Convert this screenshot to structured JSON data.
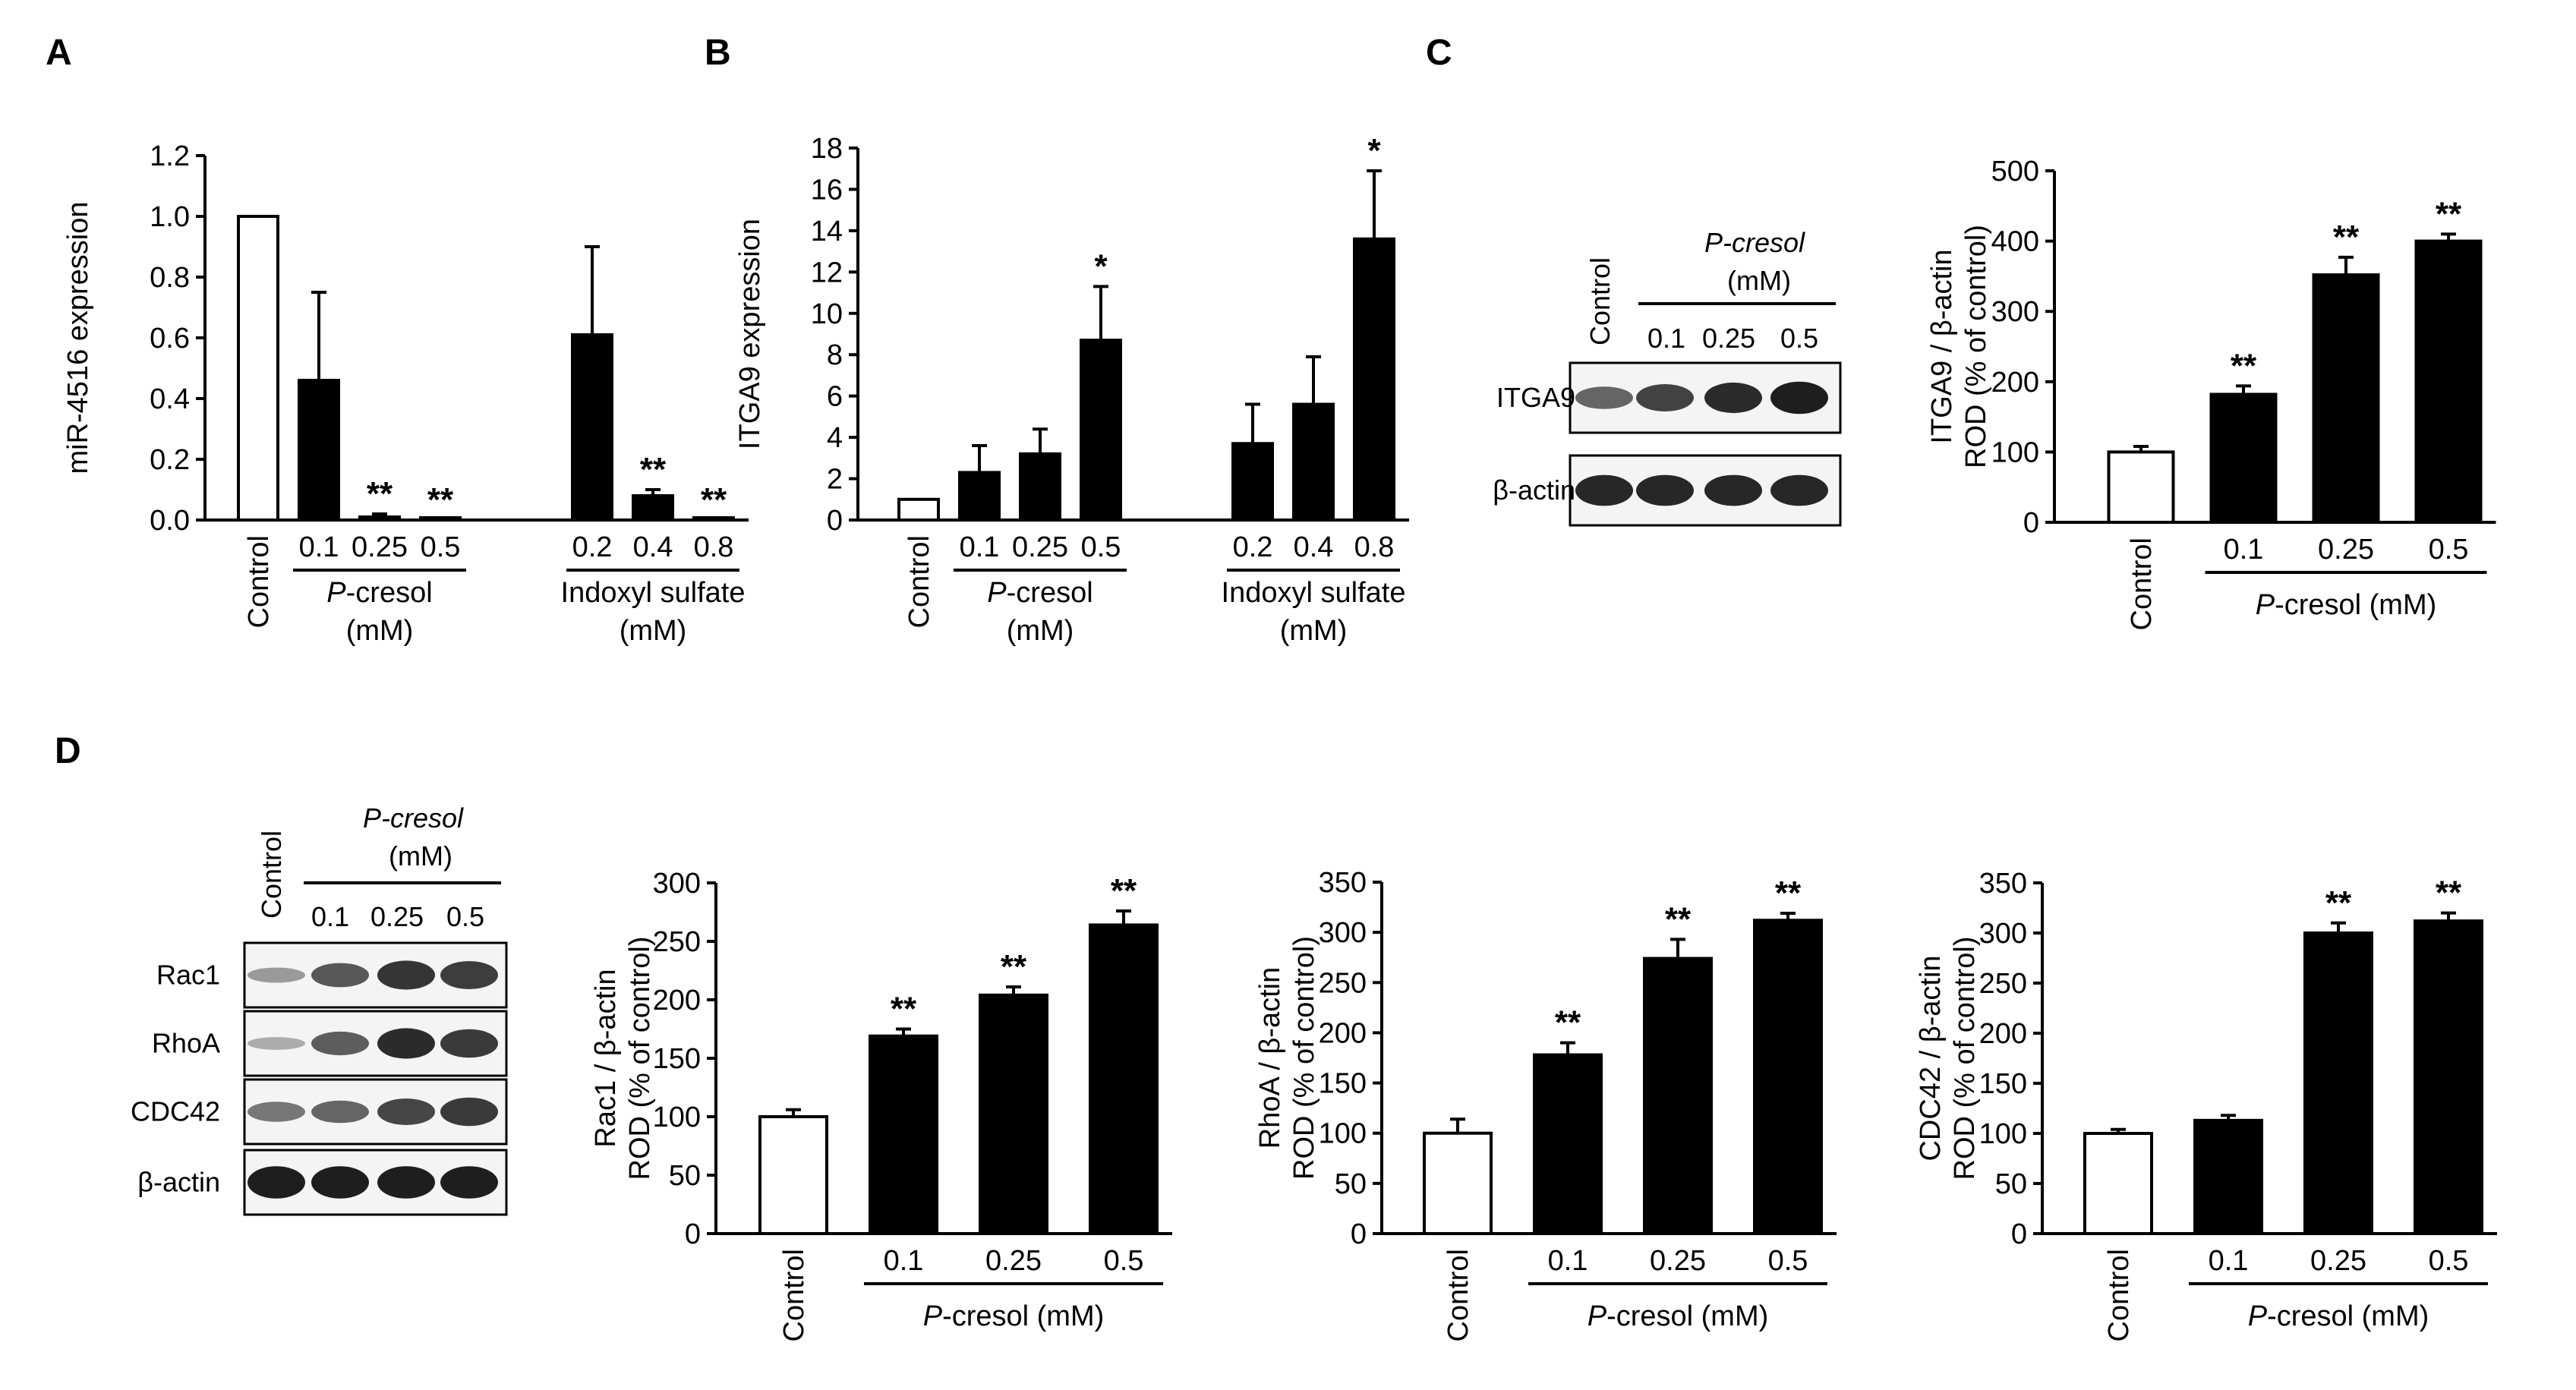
{
  "chart_data": [
    {
      "panel": "A",
      "type": "bar",
      "ylabel": "miR-4516 expression",
      "ylim": [
        0,
        1.2
      ],
      "yticks": [
        "0.0",
        "0.2",
        "0.4",
        "0.6",
        "0.8",
        "1.0",
        "1.2"
      ],
      "categories": [
        "Control",
        "0.1",
        "0.25",
        "0.5",
        "0.2",
        "0.4",
        "0.8"
      ],
      "values": [
        1.0,
        0.46,
        0.01,
        0.0,
        0.61,
        0.08,
        0.0
      ],
      "errors": [
        0,
        0.29,
        0.01,
        0,
        0.29,
        0.02,
        0
      ],
      "significance": [
        "",
        "",
        "**",
        "**",
        "",
        "**",
        "**"
      ],
      "groups": [
        {
          "name": "P-cresol",
          "unit": "(mM)",
          "members": [
            1,
            2,
            3
          ]
        },
        {
          "name": "Indoxyl sulfate",
          "unit": "(mM)",
          "members": [
            4,
            5,
            6
          ]
        }
      ]
    },
    {
      "panel": "B",
      "type": "bar",
      "ylabel": "ITGA9 expression",
      "ylim": [
        0,
        18
      ],
      "yticks": [
        "0",
        "2",
        "4",
        "6",
        "8",
        "10",
        "12",
        "14",
        "16",
        "18"
      ],
      "categories": [
        "Control",
        "0.1",
        "0.25",
        "0.5",
        "0.2",
        "0.4",
        "0.8"
      ],
      "values": [
        1.0,
        2.3,
        3.2,
        8.7,
        3.7,
        5.6,
        13.6
      ],
      "errors": [
        0,
        1.3,
        1.2,
        2.6,
        1.9,
        2.3,
        3.3
      ],
      "significance": [
        "",
        "",
        "",
        "*",
        "",
        "",
        "*"
      ],
      "groups": [
        {
          "name": "P-cresol",
          "unit": "(mM)",
          "members": [
            1,
            2,
            3
          ]
        },
        {
          "name": "Indoxyl sulfate",
          "unit": "(mM)",
          "members": [
            4,
            5,
            6
          ]
        }
      ]
    },
    {
      "panel": "C",
      "type": "bar",
      "ylabel_line1": "ITGA9 / β-actin",
      "ylabel_line2": "ROD (% of control)",
      "ylim": [
        0,
        500
      ],
      "yticks": [
        "0",
        "100",
        "200",
        "300",
        "400",
        "500"
      ],
      "categories": [
        "Control",
        "0.1",
        "0.25",
        "0.5"
      ],
      "values": [
        100,
        182,
        352,
        400
      ],
      "errors": [
        8,
        12,
        25,
        10
      ],
      "significance": [
        "",
        "**",
        "**",
        "**"
      ],
      "groups": [
        {
          "name": "P-cresol (mM)",
          "members": [
            1,
            2,
            3
          ]
        }
      ]
    },
    {
      "panel": "D",
      "type": "bar",
      "ylabel_line1": "Rac1 / β-actin",
      "ylabel_line2": "ROD (% of control)",
      "ylim": [
        0,
        300
      ],
      "yticks": [
        "0",
        "50",
        "100",
        "150",
        "200",
        "250",
        "300"
      ],
      "categories": [
        "Control",
        "0.1",
        "0.25",
        "0.5"
      ],
      "values": [
        100,
        169,
        204,
        264
      ],
      "errors": [
        6,
        6,
        7,
        12
      ],
      "significance": [
        "",
        "**",
        "**",
        "**"
      ],
      "groups": [
        {
          "name": "P-cresol (mM)",
          "members": [
            1,
            2,
            3
          ]
        }
      ]
    },
    {
      "panel": "D",
      "type": "bar",
      "ylabel_line1": "RhoA / β-actin",
      "ylabel_line2": "ROD (% of control)",
      "ylim": [
        0,
        350
      ],
      "yticks": [
        "0",
        "50",
        "100",
        "150",
        "200",
        "250",
        "300",
        "350"
      ],
      "categories": [
        "Control",
        "0.1",
        "0.25",
        "0.5"
      ],
      "values": [
        100,
        178,
        274,
        312
      ],
      "errors": [
        14,
        12,
        19,
        7
      ],
      "significance": [
        "",
        "**",
        "**",
        "**"
      ],
      "groups": [
        {
          "name": "P-cresol (mM)",
          "members": [
            1,
            2,
            3
          ]
        }
      ]
    },
    {
      "panel": "D",
      "type": "bar",
      "ylabel_line1": "CDC42 / β-actin",
      "ylabel_line2": "ROD (% of control)",
      "ylim": [
        0,
        350
      ],
      "yticks": [
        "0",
        "50",
        "100",
        "150",
        "200",
        "250",
        "300",
        "350"
      ],
      "categories": [
        "Control",
        "0.1",
        "0.25",
        "0.5"
      ],
      "values": [
        100,
        113,
        300,
        312
      ],
      "errors": [
        4,
        5,
        10,
        8
      ],
      "significance": [
        "",
        "",
        "**",
        "**"
      ],
      "groups": [
        {
          "name": "P-cresol (mM)",
          "members": [
            1,
            2,
            3
          ]
        }
      ]
    }
  ],
  "colors": {
    "control_bar": "#ffffff",
    "treated_bar": "#000000",
    "blot_background": "#f4f4f4",
    "band": "#151515"
  },
  "blots": [
    {
      "panel": "C",
      "header": {
        "control": "Control",
        "treatment": "P-cresol",
        "unit": "(mM)",
        "lanes": [
          "0.1",
          "0.25",
          "0.5"
        ]
      },
      "rows": [
        {
          "label": "ITGA9",
          "intensities": [
            0.55,
            0.75,
            0.88,
            0.95
          ]
        },
        {
          "label": "β-actin",
          "intensities": [
            0.9,
            0.9,
            0.9,
            0.9
          ]
        }
      ]
    },
    {
      "panel": "D",
      "header": {
        "control": "Control",
        "treatment": "P-cresol",
        "unit": "(mM)",
        "lanes": [
          "0.1",
          "0.25",
          "0.5"
        ]
      },
      "rows": [
        {
          "label": "Rac1",
          "intensities": [
            0.25,
            0.62,
            0.82,
            0.78
          ]
        },
        {
          "label": "RhoA",
          "intensities": [
            0.15,
            0.6,
            0.88,
            0.8
          ]
        },
        {
          "label": "CDC42",
          "intensities": [
            0.45,
            0.55,
            0.72,
            0.8
          ]
        },
        {
          "label": "β-actin",
          "intensities": [
            0.95,
            0.95,
            0.95,
            0.95
          ]
        }
      ]
    }
  ],
  "panel_labels": [
    "A",
    "B",
    "C",
    "D"
  ]
}
